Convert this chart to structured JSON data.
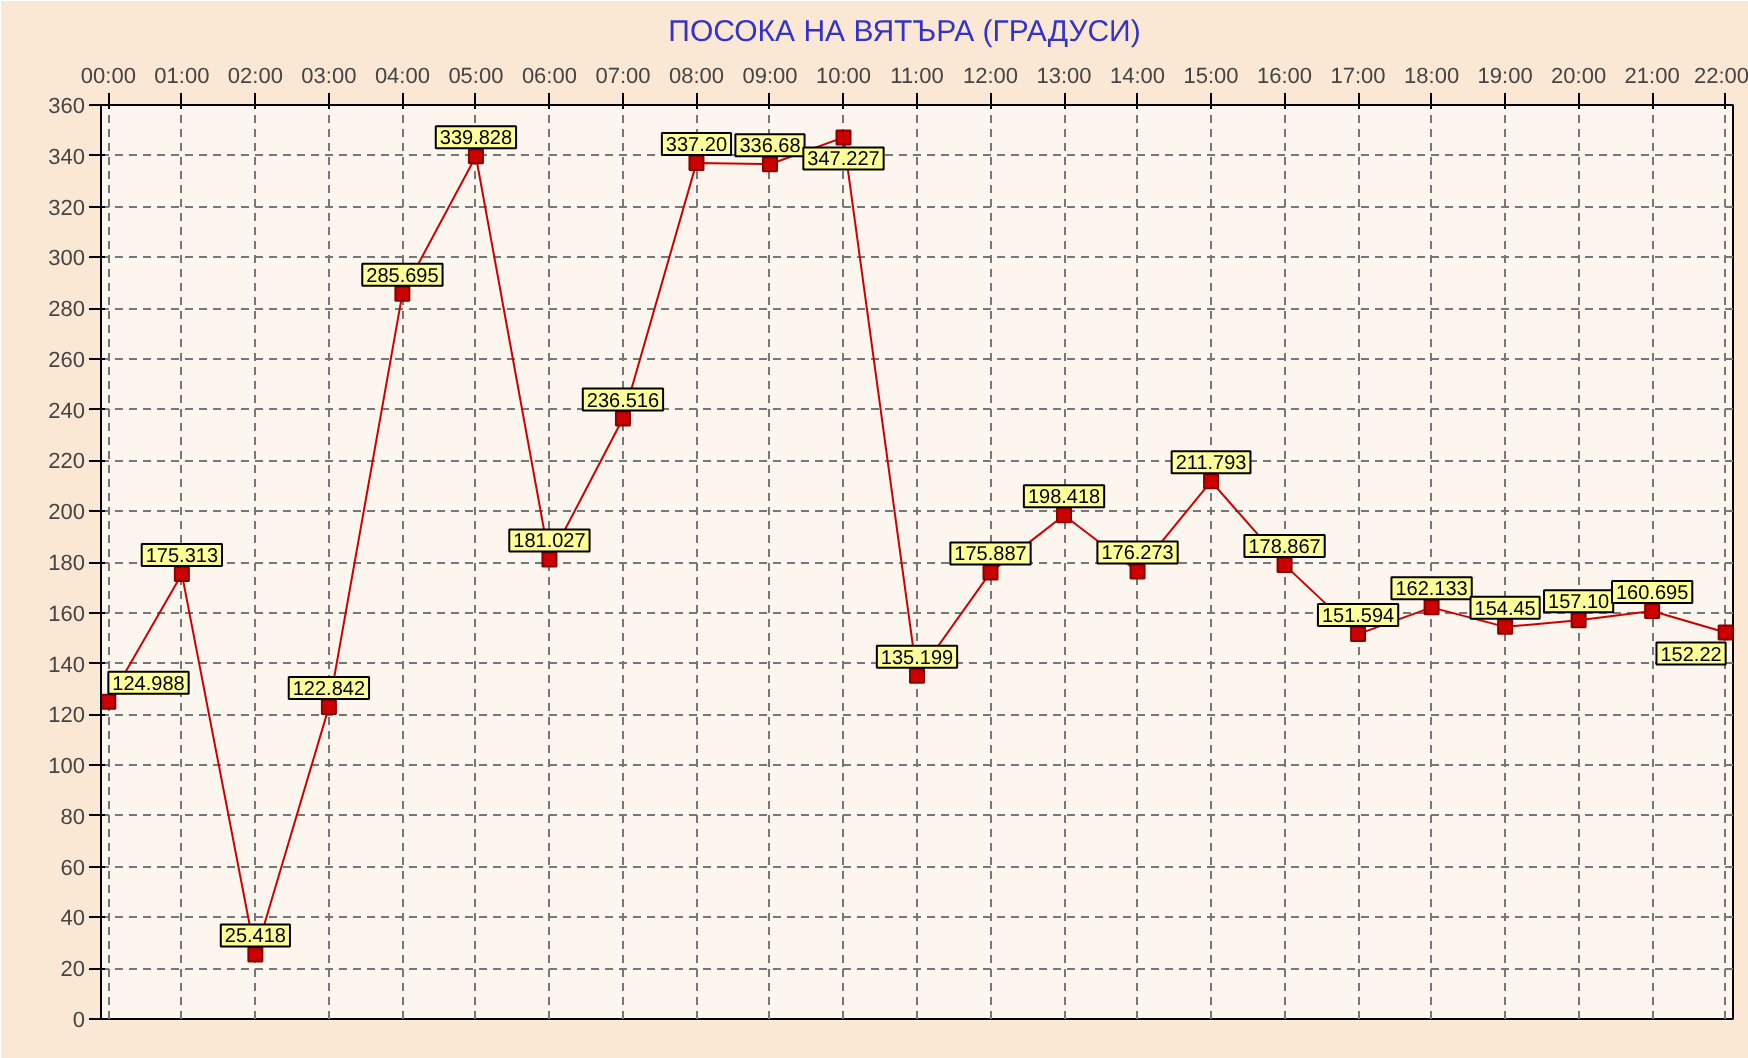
{
  "chart_data": {
    "type": "line",
    "title": "ПОСОКА НА ВЯТЪРА    (ГРАДУСИ)",
    "categories": [
      "00:00",
      "01:00",
      "02:00",
      "03:00",
      "04:00",
      "05:00",
      "06:00",
      "07:00",
      "08:00",
      "09:00",
      "10:00",
      "11:00",
      "12:00",
      "13:00",
      "14:00",
      "15:00",
      "16:00",
      "17:00",
      "18:00",
      "19:00",
      "20:00",
      "21:00",
      "22:00"
    ],
    "series": [
      {
        "color": "#cc0000",
        "values": [
          124.988,
          175.313,
          25.418,
          122.842,
          285.695,
          339.828,
          181.027,
          236.516,
          337.2,
          336.68,
          347.227,
          135.199,
          175.887,
          198.418,
          176.273,
          211.793,
          178.867,
          151.594,
          162.133,
          154.45,
          157.1,
          160.695,
          152.22
        ],
        "value_labels": [
          "124.988",
          "175.313",
          "25.418",
          "122.842",
          "285.695",
          "339.828",
          "181.027",
          "236.516",
          "337.20",
          "336.68",
          "347.227",
          "135.199",
          "175.887",
          "198.418",
          "176.273",
          "211.793",
          "178.867",
          "151.594",
          "162.133",
          "154.45",
          "157.10",
          "160.695",
          "152.22"
        ]
      }
    ],
    "ylim": [
      0,
      360
    ],
    "yticks": [
      0,
      20,
      40,
      60,
      80,
      100,
      120,
      140,
      160,
      180,
      200,
      220,
      240,
      260,
      280,
      300,
      320,
      340,
      360
    ],
    "grid": true,
    "marker": "square",
    "line_style": "solid"
  }
}
